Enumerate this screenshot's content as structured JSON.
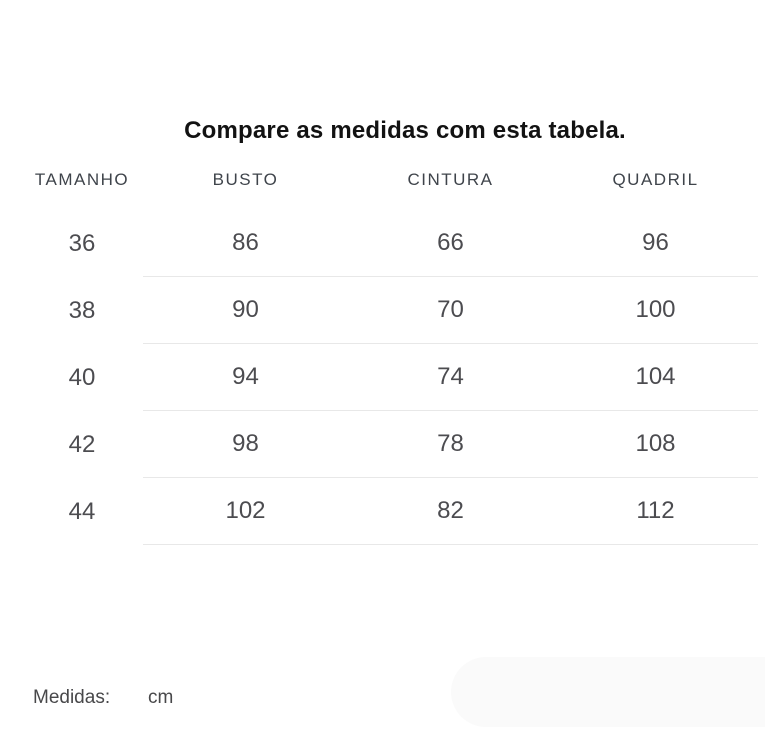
{
  "page": {
    "title": "Compare as medidas com esta tabela."
  },
  "chart_data": {
    "type": "table",
    "title": "Compare as medidas com esta tabela.",
    "columns": [
      "TAMANHO",
      "BUSTO",
      "CINTURA",
      "QUADRIL"
    ],
    "rows": [
      [
        "36",
        "86",
        "66",
        "96"
      ],
      [
        "38",
        "90",
        "70",
        "100"
      ],
      [
        "40",
        "94",
        "74",
        "104"
      ],
      [
        "42",
        "98",
        "78",
        "108"
      ],
      [
        "44",
        "102",
        "82",
        "112"
      ]
    ],
    "unit_label": "Medidas:",
    "unit_value": "cm",
    "layout": {
      "divider_columns": [
        "BUSTO",
        "CINTURA",
        "QUADRIL"
      ],
      "grid": "horizontal dividers under measurement columns only"
    }
  },
  "colors": {
    "title": "#121212",
    "column_header": "#3f444b",
    "value": "#4c4c50",
    "divider_line": "#e8e8e8",
    "background": "#ffffff",
    "pill": "#fafafa"
  }
}
